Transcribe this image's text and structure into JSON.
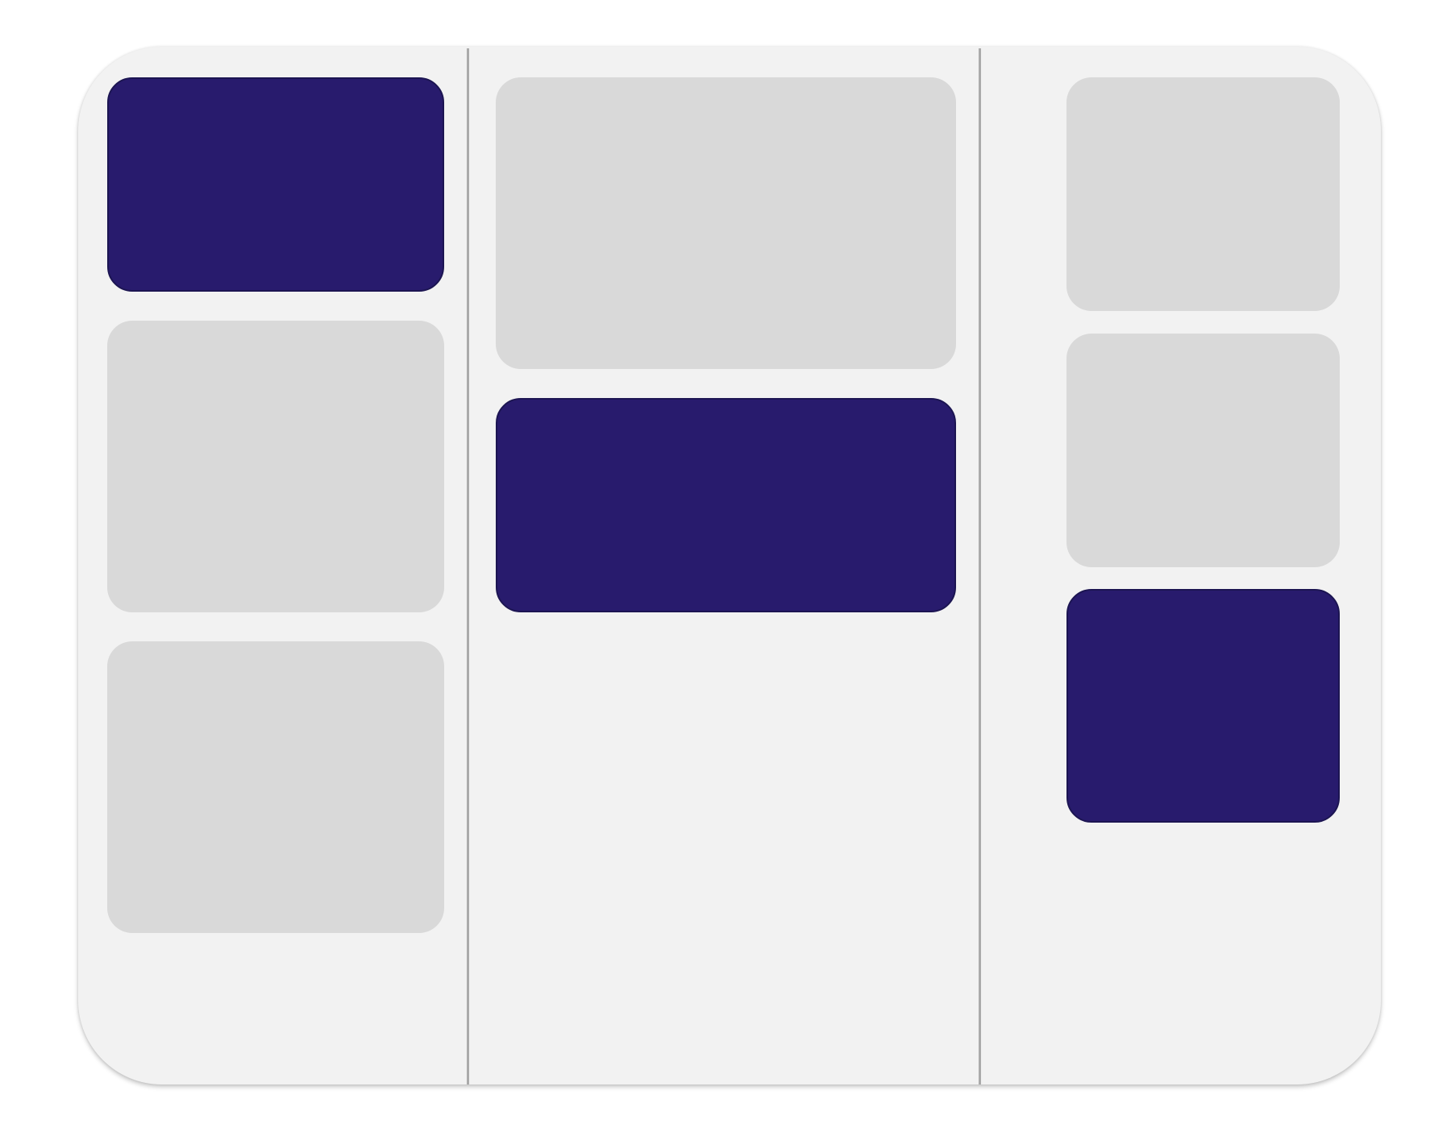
{
  "colors": {
    "page_background": "#ffffff",
    "board_background": "#f2f2f2",
    "divider": "#aaaaaa",
    "card_highlighted": "#281b6d",
    "card_default": "#d9d9d9"
  },
  "columns": [
    {
      "name": "column-1",
      "cards": [
        {
          "variant": "highlighted"
        },
        {
          "variant": "default"
        },
        {
          "variant": "default"
        }
      ]
    },
    {
      "name": "column-2",
      "cards": [
        {
          "variant": "default"
        },
        {
          "variant": "highlighted"
        }
      ]
    },
    {
      "name": "column-3",
      "cards": [
        {
          "variant": "default"
        },
        {
          "variant": "default"
        },
        {
          "variant": "highlighted"
        }
      ]
    }
  ]
}
